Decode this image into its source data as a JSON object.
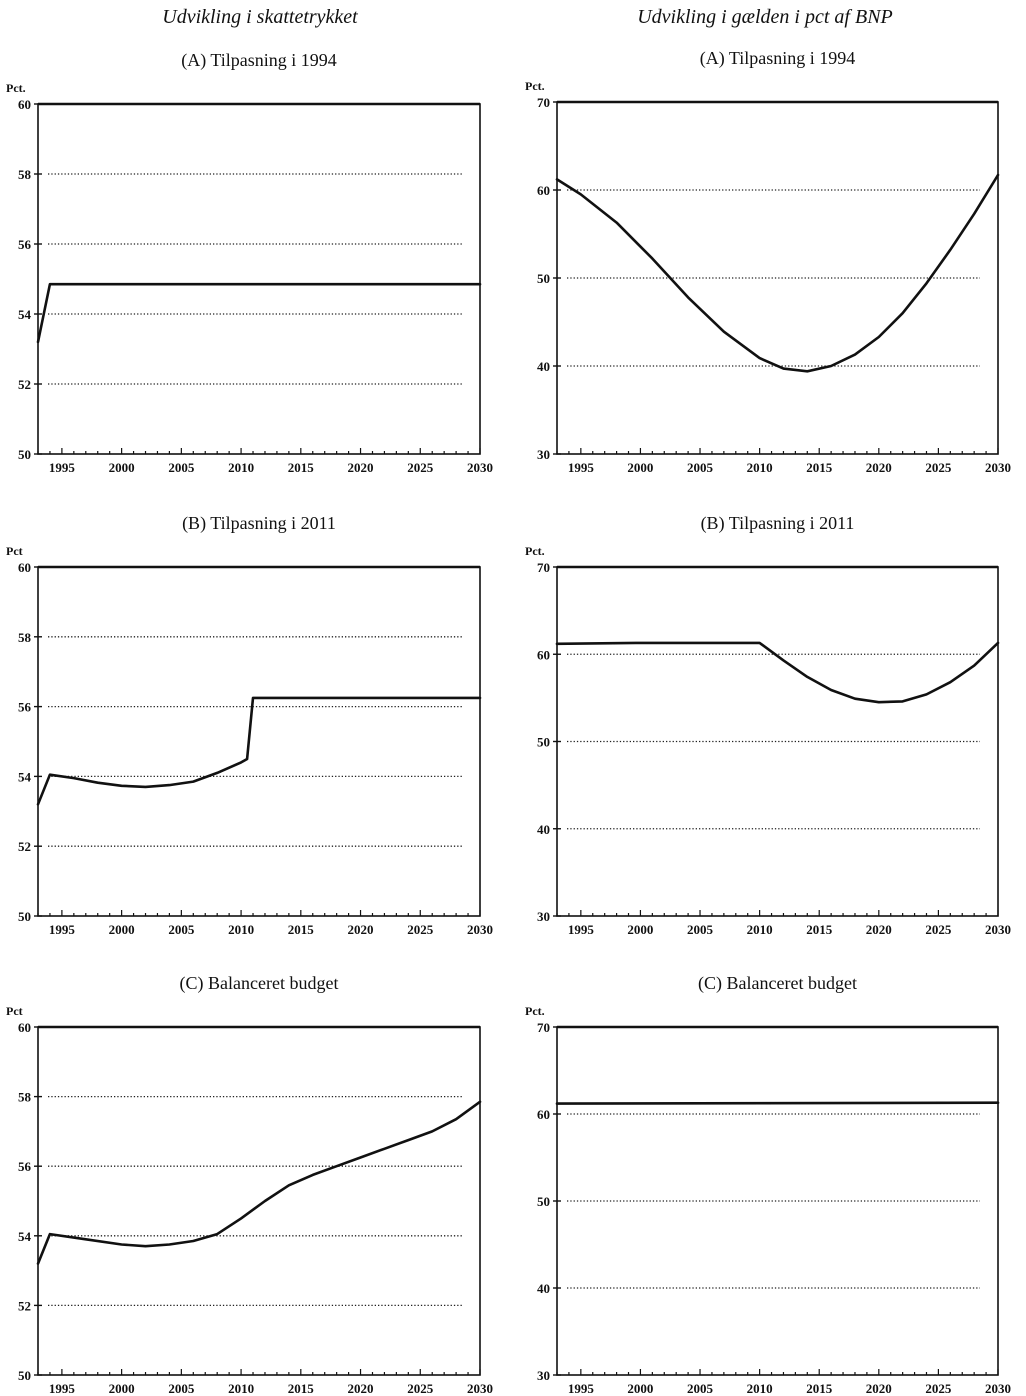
{
  "figure": {
    "left_column_title": "Udvikling i skattetrykket",
    "right_column_title": "Udvikling i gælden i pct af BNP"
  },
  "chart_data": [
    {
      "type": "line",
      "title": "(A) Tilpasning i 1994",
      "ylabel": "Pct.",
      "xlim": [
        1993,
        2030
      ],
      "ylim": [
        50,
        60
      ],
      "yticks": [
        50,
        52,
        54,
        56,
        58,
        60
      ],
      "xticks": [
        1995,
        2000,
        2005,
        2010,
        2015,
        2020,
        2025,
        2030
      ],
      "grid": true,
      "series": [
        {
          "x": [
            1993,
            1994,
            2030
          ],
          "values": [
            53.2,
            54.85,
            54.85
          ]
        }
      ]
    },
    {
      "type": "line",
      "title": "(A) Tilpasning i 1994",
      "ylabel": "Pct.",
      "xlim": [
        1993,
        2030
      ],
      "ylim": [
        30,
        70
      ],
      "yticks": [
        30,
        40,
        50,
        60,
        70
      ],
      "xticks": [
        1995,
        2000,
        2005,
        2010,
        2015,
        2020,
        2025,
        2030
      ],
      "grid": true,
      "series": [
        {
          "x": [
            1993,
            1995,
            1998,
            2001,
            2004,
            2007,
            2010,
            2012,
            2014,
            2016,
            2018,
            2020,
            2022,
            2024,
            2026,
            2028,
            2030
          ],
          "values": [
            61.2,
            59.5,
            56.3,
            52.2,
            47.8,
            43.9,
            40.9,
            39.7,
            39.4,
            40.0,
            41.3,
            43.3,
            46.0,
            49.4,
            53.2,
            57.3,
            61.7
          ]
        }
      ]
    },
    {
      "type": "line",
      "title": "(B) Tilpasning i 2011",
      "ylabel": "Pct",
      "xlim": [
        1993,
        2030
      ],
      "ylim": [
        50,
        60
      ],
      "yticks": [
        50,
        52,
        54,
        56,
        58,
        60
      ],
      "xticks": [
        1995,
        2000,
        2005,
        2010,
        2015,
        2020,
        2025,
        2030
      ],
      "grid": true,
      "series": [
        {
          "x": [
            1993,
            1994,
            1996,
            1998,
            2000,
            2002,
            2004,
            2006,
            2008,
            2010,
            2010.5,
            2011,
            2030
          ],
          "values": [
            53.2,
            54.05,
            53.95,
            53.82,
            53.73,
            53.7,
            53.75,
            53.85,
            54.1,
            54.4,
            54.5,
            56.25,
            56.25
          ]
        }
      ]
    },
    {
      "type": "line",
      "title": "(B) Tilpasning i 2011",
      "ylabel": "Pct.",
      "xlim": [
        1993,
        2030
      ],
      "ylim": [
        30,
        70
      ],
      "yticks": [
        30,
        40,
        50,
        60,
        70
      ],
      "xticks": [
        1995,
        2000,
        2005,
        2010,
        2015,
        2020,
        2025,
        2030
      ],
      "grid": true,
      "series": [
        {
          "x": [
            1993,
            2000,
            2005,
            2010,
            2012,
            2014,
            2016,
            2018,
            2020,
            2022,
            2024,
            2026,
            2028,
            2030
          ],
          "values": [
            61.2,
            61.3,
            61.3,
            61.3,
            59.3,
            57.4,
            55.9,
            54.9,
            54.5,
            54.6,
            55.4,
            56.8,
            58.7,
            61.3
          ]
        }
      ]
    },
    {
      "type": "line",
      "title": "(C) Balanceret budget",
      "ylabel": "Pct",
      "xlim": [
        1993,
        2030
      ],
      "ylim": [
        50,
        60
      ],
      "yticks": [
        50,
        52,
        54,
        56,
        58,
        60
      ],
      "xticks": [
        1995,
        2000,
        2005,
        2010,
        2015,
        2020,
        2025,
        2030
      ],
      "grid": true,
      "series": [
        {
          "x": [
            1993,
            1994,
            1997,
            2000,
            2002,
            2004,
            2006,
            2008,
            2010,
            2012,
            2014,
            2016,
            2018,
            2020,
            2022,
            2024,
            2026,
            2028,
            2030
          ],
          "values": [
            53.2,
            54.05,
            53.9,
            53.75,
            53.7,
            53.75,
            53.85,
            54.05,
            54.5,
            55.0,
            55.45,
            55.75,
            56.0,
            56.25,
            56.5,
            56.75,
            57.0,
            57.35,
            57.85
          ]
        }
      ]
    },
    {
      "type": "line",
      "title": "(C) Balanceret budget",
      "ylabel": "Pct.",
      "xlim": [
        1993,
        2030
      ],
      "ylim": [
        30,
        70
      ],
      "yticks": [
        30,
        40,
        50,
        60,
        70
      ],
      "xticks": [
        1995,
        2000,
        2005,
        2010,
        2015,
        2020,
        2025,
        2030
      ],
      "grid": true,
      "series": [
        {
          "x": [
            1993,
            2030
          ],
          "values": [
            61.2,
            61.3
          ]
        }
      ]
    }
  ]
}
